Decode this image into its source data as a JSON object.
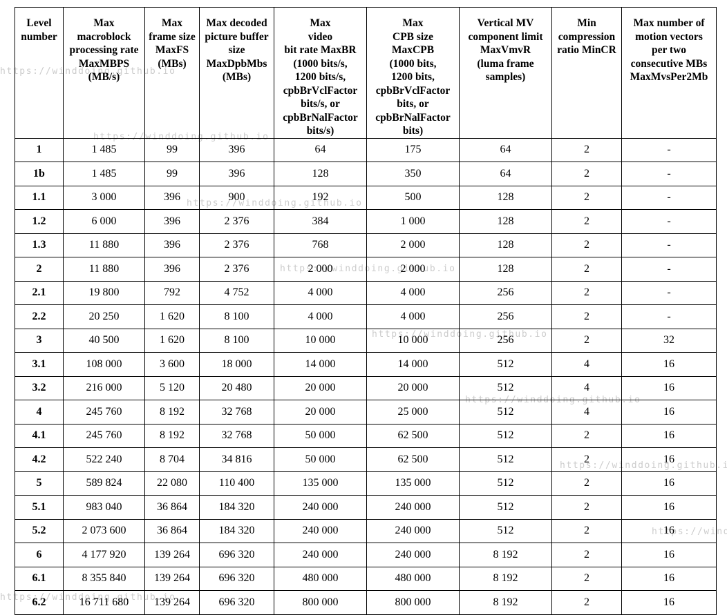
{
  "page": {
    "background_color": "#ffffff",
    "watermark_text": "https://winddoing.github.io",
    "watermark_color": "#cccccc",
    "border_color": "#000000"
  },
  "table": {
    "columns": [
      {
        "id": "level_number",
        "header_lines": [
          "Level",
          "number"
        ]
      },
      {
        "id": "max_mbps",
        "header_lines": [
          "Max",
          "macroblock",
          "processing rate",
          "MaxMBPS",
          "(MB/s)"
        ]
      },
      {
        "id": "max_fs",
        "header_lines": [
          "Max",
          "frame size",
          "MaxFS",
          "(MBs)"
        ]
      },
      {
        "id": "max_dpb_mbs",
        "header_lines": [
          "Max decoded",
          "picture buffer",
          "size",
          "MaxDpbMbs",
          "(MBs)"
        ]
      },
      {
        "id": "max_br",
        "header_lines": [
          "Max",
          "video",
          "bit rate MaxBR",
          "(1000 bits/s,",
          "1200 bits/s,",
          "cpbBrVclFactor",
          "bits/s, or",
          "cpbBrNalFactor",
          "bits/s)"
        ]
      },
      {
        "id": "max_cpb",
        "header_lines": [
          "Max",
          "CPB size",
          "MaxCPB",
          "(1000 bits,",
          "1200 bits,",
          "cpbBrVclFactor",
          "bits, or",
          "cpbBrNalFactor",
          "bits)"
        ]
      },
      {
        "id": "max_vmv_r",
        "header_lines": [
          "Vertical MV",
          "component limit",
          "MaxVmvR",
          "(luma frame",
          "samples)"
        ]
      },
      {
        "id": "min_cr",
        "header_lines": [
          "Min",
          "compression",
          "ratio MinCR"
        ]
      },
      {
        "id": "max_mvs_per_2mb",
        "header_lines": [
          "Max number of",
          "motion vectors",
          "per two",
          "consecutive MBs",
          "MaxMvsPer2Mb"
        ]
      }
    ],
    "rows": [
      [
        "1",
        "1 485",
        "99",
        "396",
        "64",
        "175",
        "64",
        "2",
        "-"
      ],
      [
        "1b",
        "1 485",
        "99",
        "396",
        "128",
        "350",
        "64",
        "2",
        "-"
      ],
      [
        "1.1",
        "3 000",
        "396",
        "900",
        "192",
        "500",
        "128",
        "2",
        "-"
      ],
      [
        "1.2",
        "6 000",
        "396",
        "2 376",
        "384",
        "1 000",
        "128",
        "2",
        "-"
      ],
      [
        "1.3",
        "11 880",
        "396",
        "2 376",
        "768",
        "2 000",
        "128",
        "2",
        "-"
      ],
      [
        "2",
        "11 880",
        "396",
        "2 376",
        "2 000",
        "2 000",
        "128",
        "2",
        "-"
      ],
      [
        "2.1",
        "19 800",
        "792",
        "4 752",
        "4 000",
        "4 000",
        "256",
        "2",
        "-"
      ],
      [
        "2.2",
        "20 250",
        "1 620",
        "8 100",
        "4 000",
        "4 000",
        "256",
        "2",
        "-"
      ],
      [
        "3",
        "40 500",
        "1 620",
        "8 100",
        "10 000",
        "10 000",
        "256",
        "2",
        "32"
      ],
      [
        "3.1",
        "108 000",
        "3 600",
        "18 000",
        "14 000",
        "14 000",
        "512",
        "4",
        "16"
      ],
      [
        "3.2",
        "216 000",
        "5 120",
        "20 480",
        "20 000",
        "20 000",
        "512",
        "4",
        "16"
      ],
      [
        "4",
        "245 760",
        "8 192",
        "32 768",
        "20 000",
        "25 000",
        "512",
        "4",
        "16"
      ],
      [
        "4.1",
        "245 760",
        "8 192",
        "32 768",
        "50 000",
        "62 500",
        "512",
        "2",
        "16"
      ],
      [
        "4.2",
        "522 240",
        "8 704",
        "34 816",
        "50 000",
        "62 500",
        "512",
        "2",
        "16"
      ],
      [
        "5",
        "589 824",
        "22 080",
        "110 400",
        "135 000",
        "135 000",
        "512",
        "2",
        "16"
      ],
      [
        "5.1",
        "983 040",
        "36 864",
        "184 320",
        "240 000",
        "240 000",
        "512",
        "2",
        "16"
      ],
      [
        "5.2",
        "2 073 600",
        "36 864",
        "184 320",
        "240 000",
        "240 000",
        "512",
        "2",
        "16"
      ],
      [
        "6",
        "4 177 920",
        "139 264",
        "696 320",
        "240 000",
        "240 000",
        "8 192",
        "2",
        "16"
      ],
      [
        "6.1",
        "8 355 840",
        "139 264",
        "696 320",
        "480 000",
        "480 000",
        "8 192",
        "2",
        "16"
      ],
      [
        "6.2",
        "16 711 680",
        "139 264",
        "696 320",
        "800 000",
        "800 000",
        "8 192",
        "2",
        "16"
      ]
    ]
  }
}
